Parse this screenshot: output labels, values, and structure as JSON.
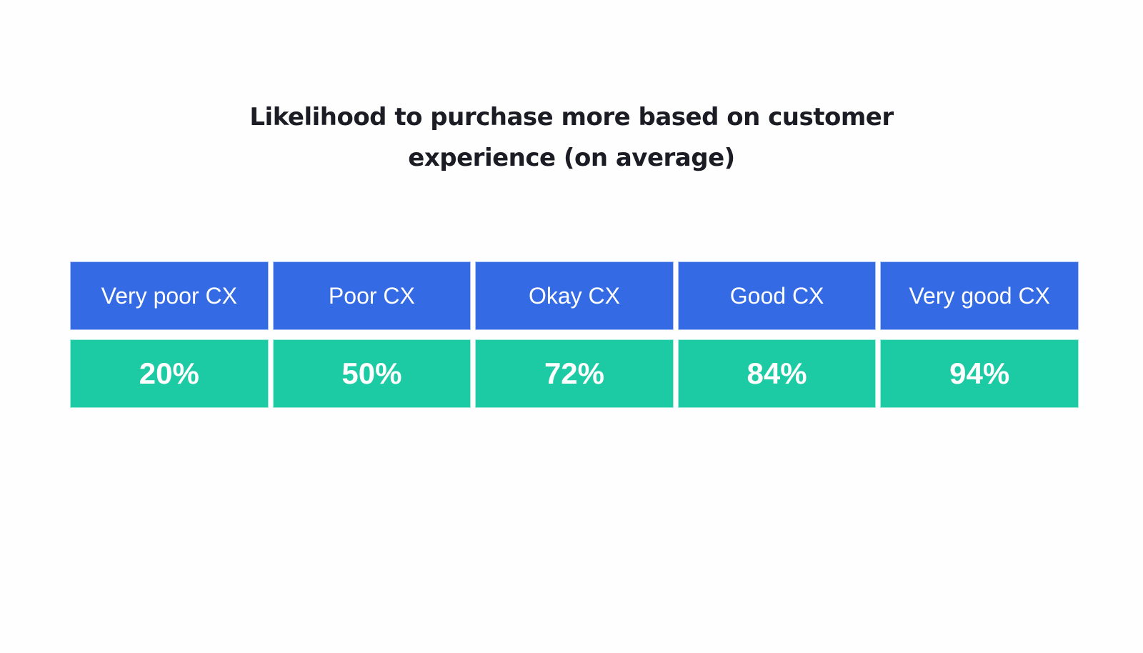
{
  "title": {
    "line1": "Likelihood to purchase more based on customer",
    "line2": "experience (on average)"
  },
  "colors": {
    "header_bg": "#346ae4",
    "value_bg": "#1ccba4",
    "text_light": "#ffffff",
    "title_text": "#1b1c24"
  },
  "table": {
    "headers": [
      "Very poor CX",
      "Poor CX",
      "Okay CX",
      "Good CX",
      "Very good CX"
    ],
    "values": [
      "20%",
      "50%",
      "72%",
      "84%",
      "94%"
    ]
  },
  "chart_data": {
    "type": "table",
    "title": "Likelihood to purchase more based on customer experience (on average)",
    "categories": [
      "Very poor CX",
      "Poor CX",
      "Okay CX",
      "Good CX",
      "Very good CX"
    ],
    "values": [
      20,
      50,
      72,
      84,
      94
    ],
    "unit": "%",
    "xlabel": "",
    "ylabel": "",
    "grid": false,
    "legend": null
  }
}
